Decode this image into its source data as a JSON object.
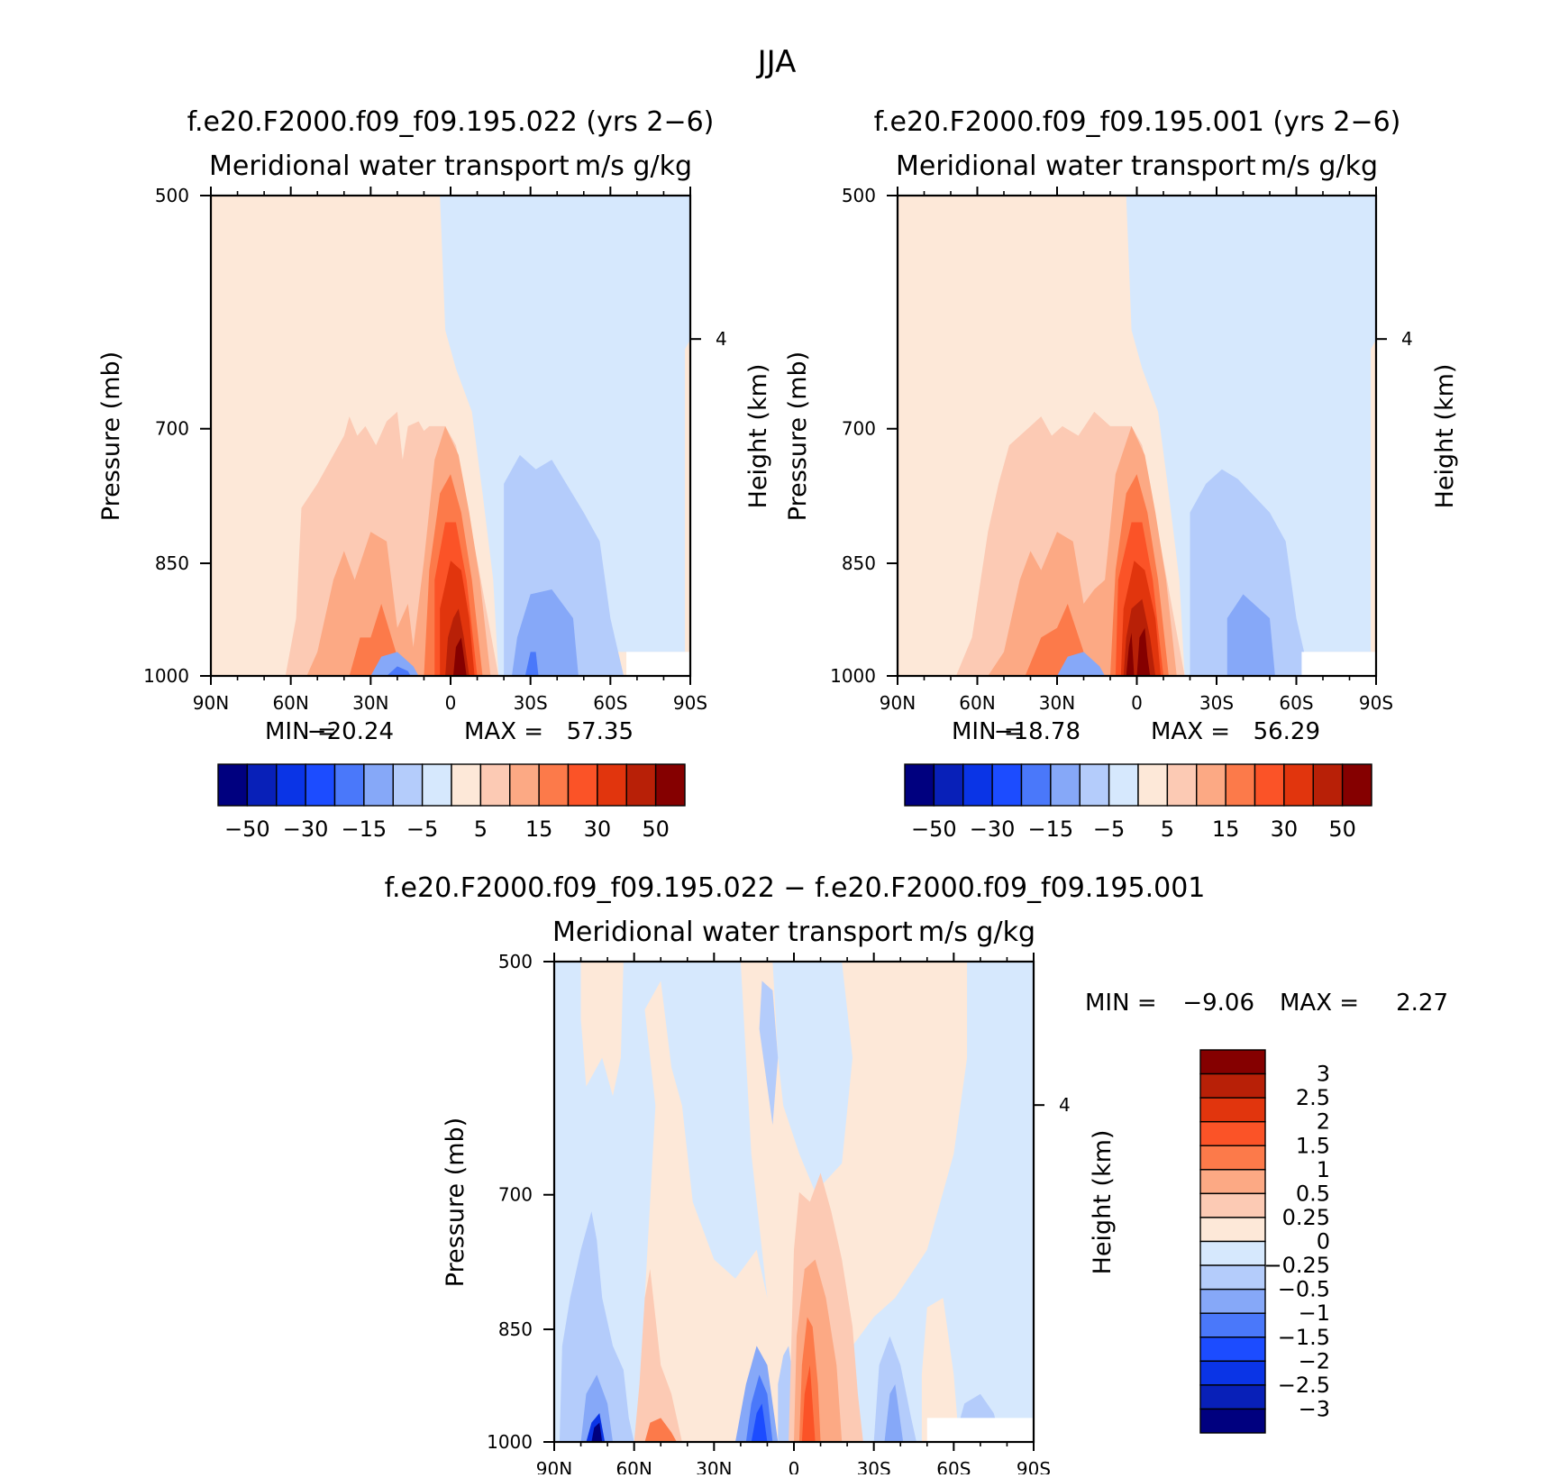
{
  "figure": {
    "title": "JJA"
  },
  "panels": [
    {
      "id": "p1",
      "run_title": "f.e20.F2000.f09_f09.195.022 (yrs 2−6)",
      "variable": "Meridional water transport",
      "units": "m/s g/kg",
      "stats": {
        "min_label": "MIN =",
        "min": "−20.24",
        "max_label": "MAX =",
        "max": "57.35"
      },
      "y_axis": {
        "label": "Pressure (mb)",
        "ticks": [
          "500",
          "700",
          "850",
          "1000"
        ]
      },
      "y2_axis": {
        "label": "Height (km)",
        "ticks": [
          "4"
        ]
      },
      "x_axis": {
        "ticks": [
          "90N",
          "60N",
          "30N",
          "0",
          "30S",
          "60S",
          "90S"
        ]
      }
    },
    {
      "id": "p2",
      "run_title": "f.e20.F2000.f09_f09.195.001 (yrs 2−6)",
      "variable": "Meridional water transport",
      "units": "m/s g/kg",
      "stats": {
        "min_label": "MIN =",
        "min": "−18.78",
        "max_label": "MAX =",
        "max": "56.29"
      },
      "y_axis": {
        "label": "Pressure (mb)",
        "ticks": [
          "500",
          "700",
          "850",
          "1000"
        ]
      },
      "y2_axis": {
        "label": "Height (km)",
        "ticks": [
          "4"
        ]
      },
      "x_axis": {
        "ticks": [
          "90N",
          "60N",
          "30N",
          "0",
          "30S",
          "60S",
          "90S"
        ]
      }
    },
    {
      "id": "p3",
      "run_title": "f.e20.F2000.f09_f09.195.022 − f.e20.F2000.f09_f09.195.001",
      "variable": "Meridional water transport",
      "units": "m/s g/kg",
      "stats": {
        "min_label": "MIN =",
        "min": "−9.06",
        "max_label": "MAX =",
        "max": "2.27"
      },
      "y_axis": {
        "label": "Pressure (mb)",
        "ticks": [
          "500",
          "700",
          "850",
          "1000"
        ]
      },
      "y2_axis": {
        "label": "Height (km)",
        "ticks": [
          "4"
        ]
      },
      "x_axis": {
        "ticks": [
          "90N",
          "60N",
          "30N",
          "0",
          "30S",
          "60S",
          "90S"
        ]
      }
    }
  ],
  "colorbars": {
    "abs_labels": [
      "−50",
      "−30",
      "−15",
      "−5",
      "5",
      "15",
      "30",
      "50"
    ],
    "diff_labels": [
      "3",
      "2.5",
      "2",
      "1.5",
      "1",
      "0.5",
      "0.25",
      "0",
      "−0.25",
      "−0.5",
      "−1",
      "−1.5",
      "−2",
      "−2.5",
      "−3"
    ]
  },
  "palette": [
    "#00007f",
    "#0820b8",
    "#0a34e6",
    "#1c4cff",
    "#4a78fa",
    "#86a8f8",
    "#b4ccfb",
    "#d6e8fd",
    "#fde8d8",
    "#fccab4",
    "#fca984",
    "#fc7a4a",
    "#fb5327",
    "#e1350d",
    "#b82007",
    "#850000"
  ],
  "chart_data": [
    {
      "type": "heatmap",
      "title": "f.e20.F2000.f09_f09.195.022 (yrs 2−6)",
      "subtitle": "Meridional water transport",
      "units": "m/s g/kg",
      "x": {
        "ticks": [
          "90N",
          "60N",
          "30N",
          "0",
          "30S",
          "60S",
          "90S"
        ],
        "range": [
          90,
          -90
        ],
        "unit": "latitude"
      },
      "y": {
        "label": "Pressure (mb)",
        "ticks": [
          500,
          700,
          850,
          1000
        ],
        "range": [
          500,
          1000
        ],
        "scale": "log-pressure"
      },
      "y2": {
        "label": "Height (km)",
        "ticks": [
          4
        ]
      },
      "levels": [
        -50,
        -40,
        -30,
        -20,
        -15,
        -10,
        -5,
        0,
        5,
        10,
        15,
        20,
        30,
        40,
        50
      ],
      "min": -20.24,
      "max": 57.35,
      "features": [
        {
          "kind": "max",
          "lat": -8,
          "p": 1000,
          "value": 57.35
        },
        {
          "kind": "min",
          "lat": 18,
          "p": 995,
          "value": -20.24
        }
      ]
    },
    {
      "type": "heatmap",
      "title": "f.e20.F2000.f09_f09.195.001 (yrs 2−6)",
      "subtitle": "Meridional water transport",
      "units": "m/s g/kg",
      "x": {
        "ticks": [
          "90N",
          "60N",
          "30N",
          "0",
          "30S",
          "60S",
          "90S"
        ],
        "range": [
          90,
          -90
        ],
        "unit": "latitude"
      },
      "y": {
        "label": "Pressure (mb)",
        "ticks": [
          500,
          700,
          850,
          1000
        ],
        "range": [
          500,
          1000
        ],
        "scale": "log-pressure"
      },
      "y2": {
        "label": "Height (km)",
        "ticks": [
          4
        ]
      },
      "levels": [
        -50,
        -40,
        -30,
        -20,
        -15,
        -10,
        -5,
        0,
        5,
        10,
        15,
        20,
        30,
        40,
        50
      ],
      "min": -18.78,
      "max": 56.29,
      "features": [
        {
          "kind": "max",
          "lat": -8,
          "p": 1000,
          "value": 56.29
        },
        {
          "kind": "min",
          "lat": 18,
          "p": 995,
          "value": -18.78
        }
      ]
    },
    {
      "type": "heatmap",
      "title": "f.e20.F2000.f09_f09.195.022 − f.e20.F2000.f09_f09.195.001",
      "subtitle": "Meridional water transport",
      "units": "m/s g/kg",
      "x": {
        "ticks": [
          "90N",
          "60N",
          "30N",
          "0",
          "30S",
          "60S",
          "90S"
        ],
        "range": [
          90,
          -90
        ],
        "unit": "latitude"
      },
      "y": {
        "label": "Pressure (mb)",
        "ticks": [
          500,
          700,
          850,
          1000
        ],
        "range": [
          500,
          1000
        ],
        "scale": "log-pressure"
      },
      "y2": {
        "label": "Height (km)",
        "ticks": [
          4
        ]
      },
      "levels": [
        -3,
        -2.5,
        -2,
        -1.5,
        -1,
        -0.5,
        -0.25,
        0,
        0.25,
        0.5,
        1,
        1.5,
        2,
        2.5,
        3
      ],
      "min": -9.06,
      "max": 2.27,
      "features": [
        {
          "kind": "min",
          "lat": 66,
          "p": 1000,
          "value": -9.06
        },
        {
          "kind": "max",
          "lat": -5,
          "p": 1000,
          "value": 2.27
        }
      ]
    }
  ]
}
